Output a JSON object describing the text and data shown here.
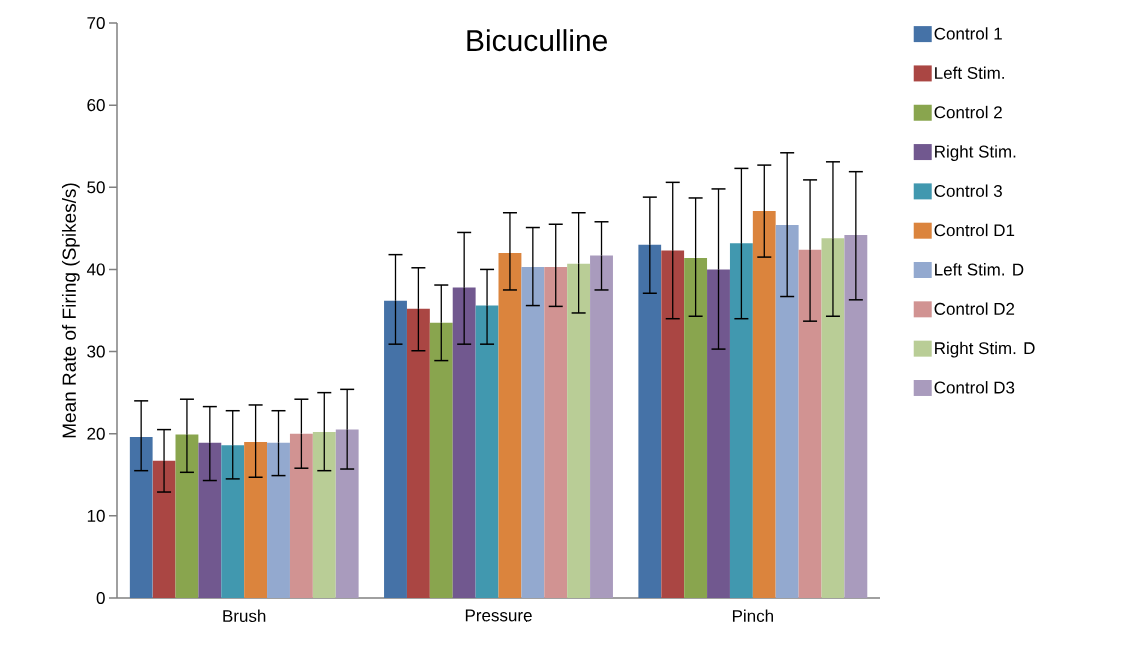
{
  "chart_data": {
    "type": "bar",
    "title": "Bicuculline",
    "ylabel": "Mean Rate of Firing (Spikes/s)",
    "categories": [
      "Brush",
      "Pressure",
      "Pinch"
    ],
    "ylim": [
      0,
      70
    ],
    "yticks": [
      0,
      10,
      20,
      30,
      40,
      50,
      60,
      70
    ],
    "legend": "right",
    "grid": false,
    "series": [
      {
        "name": "Control 1",
        "color": "#4572a7",
        "values": [
          19.6,
          36.2,
          43.0
        ],
        "errors": [
          [
            15.5,
            24.0
          ],
          [
            30.9,
            41.8
          ],
          [
            37.1,
            48.8
          ]
        ]
      },
      {
        "name": "Left Stim.",
        "color": "#aa4643",
        "values": [
          16.7,
          35.2,
          42.3
        ],
        "errors": [
          [
            12.9,
            20.5
          ],
          [
            30.1,
            40.2
          ],
          [
            34.0,
            50.6
          ]
        ]
      },
      {
        "name": "Control 2",
        "color": "#89a54e",
        "values": [
          19.9,
          33.5,
          41.4
        ],
        "errors": [
          [
            15.3,
            24.2
          ],
          [
            28.9,
            38.1
          ],
          [
            34.3,
            48.7
          ]
        ]
      },
      {
        "name": "Right Stim.",
        "color": "#71588f",
        "values": [
          18.9,
          37.8,
          40.0
        ],
        "errors": [
          [
            14.3,
            23.3
          ],
          [
            30.9,
            44.5
          ],
          [
            30.3,
            49.8
          ]
        ]
      },
      {
        "name": "Control 3",
        "color": "#4198af",
        "values": [
          18.6,
          35.6,
          43.2
        ],
        "errors": [
          [
            14.5,
            22.8
          ],
          [
            30.9,
            40.0
          ],
          [
            34.0,
            52.3
          ]
        ]
      },
      {
        "name": "Control D1",
        "color": "#db843d",
        "values": [
          19.0,
          42.0,
          47.1
        ],
        "errors": [
          [
            14.7,
            23.5
          ],
          [
            37.5,
            46.9
          ],
          [
            41.5,
            52.7
          ]
        ]
      },
      {
        "name": "Left Stim. D",
        "color": "#93a9cf",
        "values": [
          18.9,
          40.3,
          45.4
        ],
        "errors": [
          [
            14.9,
            22.8
          ],
          [
            35.6,
            45.1
          ],
          [
            36.7,
            54.2
          ]
        ]
      },
      {
        "name": "Control D2",
        "color": "#d19392",
        "values": [
          20.0,
          40.3,
          42.4
        ],
        "errors": [
          [
            15.8,
            24.2
          ],
          [
            35.5,
            45.5
          ],
          [
            33.7,
            50.9
          ]
        ]
      },
      {
        "name": "Right Stim. D",
        "color": "#b9cd96",
        "values": [
          20.2,
          40.7,
          43.8
        ],
        "errors": [
          [
            15.5,
            25.0
          ],
          [
            34.7,
            46.9
          ],
          [
            34.3,
            53.1
          ]
        ]
      },
      {
        "name": "Control D3",
        "color": "#a99bbd",
        "values": [
          20.5,
          41.7,
          44.2
        ],
        "errors": [
          [
            15.7,
            25.4
          ],
          [
            37.5,
            45.8
          ],
          [
            36.3,
            51.9
          ]
        ]
      }
    ]
  }
}
